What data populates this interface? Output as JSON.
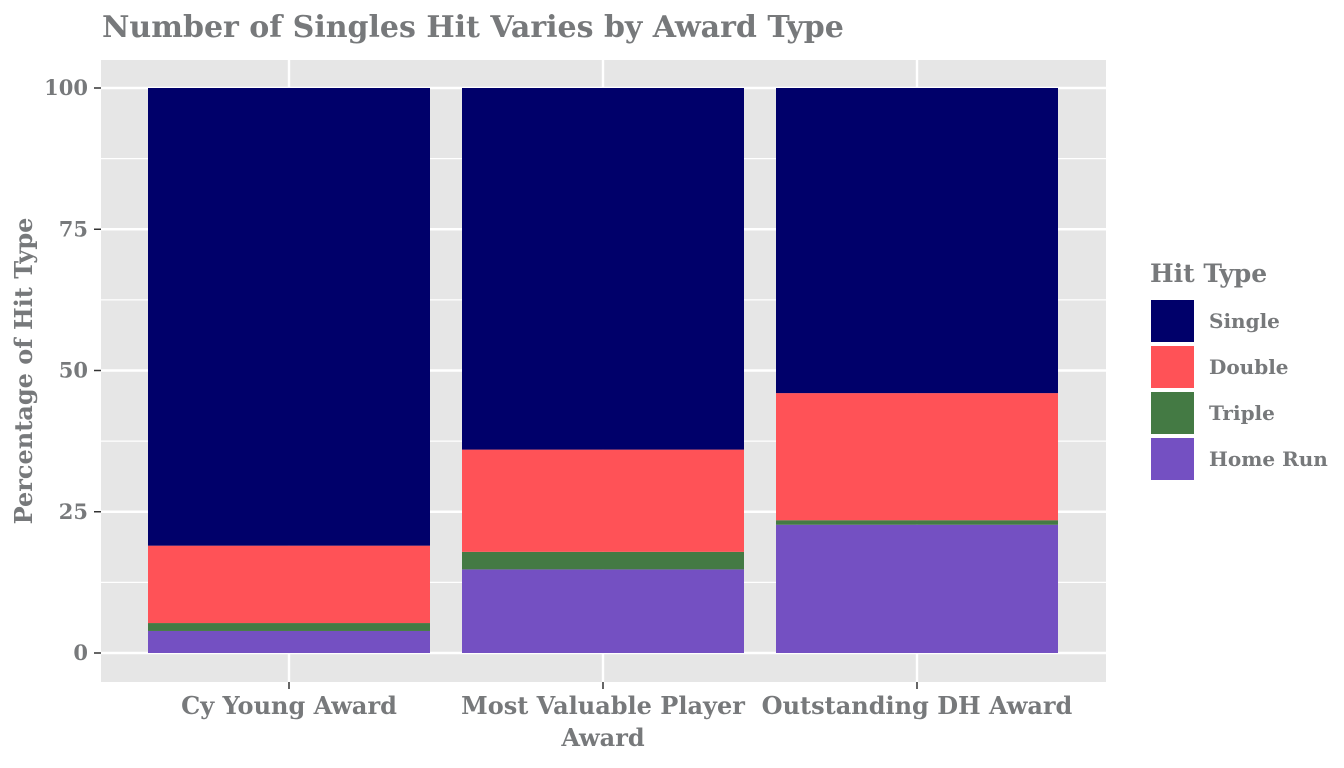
{
  "chart_data": {
    "type": "bar",
    "stacked": true,
    "title": "Number of Singles Hit Varies by Award Type",
    "xlabel": "",
    "ylabel": "Percentage of Hit Type",
    "ylim": [
      0,
      105
    ],
    "yticks": [
      0,
      25,
      50,
      75,
      100
    ],
    "grid": true,
    "legend_position": "right",
    "legend_title": "Hit Type",
    "categories": [
      [
        "Cy Young Award"
      ],
      [
        "Most Valuable Player",
        "Award"
      ],
      [
        "Outstanding DH Award"
      ]
    ],
    "stack_order_bottom_up": [
      "Home Run",
      "Triple",
      "Double",
      "Single"
    ],
    "legend_order": [
      "Single",
      "Double",
      "Triple",
      "Home Run"
    ],
    "series": [
      {
        "name": "Single",
        "color": "#00006a",
        "values": [
          81.0,
          64.0,
          54.0
        ]
      },
      {
        "name": "Double",
        "color": "#ff5257",
        "values": [
          13.7,
          18.1,
          22.5
        ]
      },
      {
        "name": "Triple",
        "color": "#447a44",
        "values": [
          1.4,
          3.1,
          0.8
        ]
      },
      {
        "name": "Home Run",
        "color": "#7450c2",
        "values": [
          3.9,
          14.8,
          22.7
        ]
      }
    ]
  }
}
